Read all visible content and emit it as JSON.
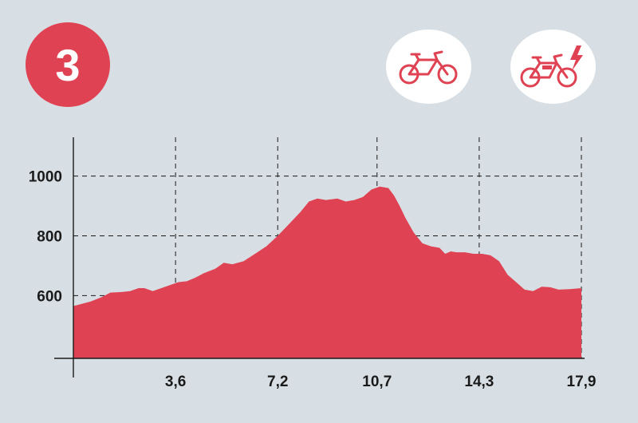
{
  "route_number": "3",
  "icons": [
    "bicycle-icon",
    "electric-bicycle-icon"
  ],
  "colors": {
    "background": "#d8dfe4",
    "accent": "#df4252",
    "badge_background": "#ffffff",
    "axis": "#1a1a1a"
  },
  "chart_data": {
    "type": "area",
    "title": "",
    "xlabel": "",
    "ylabel": "",
    "xlim": [
      0,
      17.9
    ],
    "ylim": [
      390,
      1130
    ],
    "grid": true,
    "x_ticks": [
      {
        "value": 3.6,
        "label": "3,6"
      },
      {
        "value": 7.2,
        "label": "7,2"
      },
      {
        "value": 10.7,
        "label": "10,7"
      },
      {
        "value": 14.3,
        "label": "14,3"
      },
      {
        "value": 17.9,
        "label": "17,9"
      }
    ],
    "y_ticks": [
      {
        "value": 600,
        "label": "600"
      },
      {
        "value": 800,
        "label": "800"
      },
      {
        "value": 1000,
        "label": "1000"
      }
    ],
    "series": [
      {
        "x": [
          0,
          0.6,
          1.0,
          1.3,
          1.7,
          2.0,
          2.3,
          2.5,
          2.8,
          3.1,
          3.4,
          3.7,
          4.0,
          4.3,
          4.6,
          5.0,
          5.3,
          5.6,
          6.0,
          6.4,
          6.8,
          7.2,
          7.6,
          8.0,
          8.3,
          8.6,
          8.9,
          9.3,
          9.6,
          9.9,
          10.2,
          10.5,
          10.8,
          11.1,
          11.3,
          11.5,
          11.7,
          12.0,
          12.3,
          12.6,
          12.9,
          13.1,
          13.3,
          13.5,
          13.8,
          14.1,
          14.4,
          14.7,
          15.0,
          15.3,
          15.6,
          15.9,
          16.2,
          16.5,
          16.8,
          17.1,
          17.5,
          17.9
        ],
        "y": [
          565,
          580,
          595,
          610,
          612,
          615,
          625,
          625,
          615,
          625,
          635,
          645,
          648,
          660,
          675,
          690,
          710,
          705,
          715,
          740,
          765,
          800,
          840,
          880,
          915,
          925,
          920,
          925,
          915,
          920,
          930,
          955,
          965,
          960,
          935,
          900,
          860,
          810,
          775,
          765,
          760,
          740,
          748,
          745,
          745,
          740,
          740,
          735,
          715,
          670,
          645,
          620,
          615,
          630,
          628,
          620,
          622,
          625
        ]
      }
    ]
  }
}
